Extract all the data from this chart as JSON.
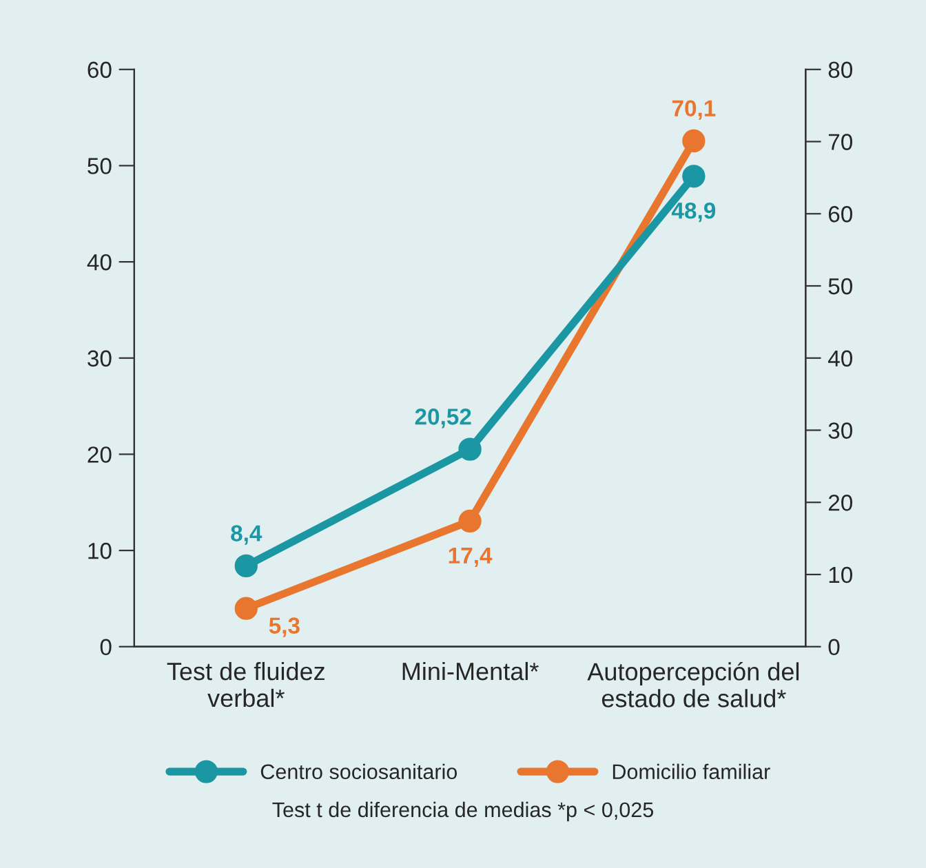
{
  "chart_data": {
    "type": "line",
    "categories": [
      "Test de fluidez\nverbal*",
      "Mini-Mental*",
      "Autopercepción del\nestado de salud*"
    ],
    "series": [
      {
        "name": "Centro sociosanitario",
        "color": "#1b97a3",
        "values": [
          8.4,
          20.52,
          48.9
        ],
        "value_labels": [
          "8,4",
          "20,52",
          "48,9"
        ]
      },
      {
        "name": "Domicilio familiar",
        "color": "#e8762f",
        "values": [
          5.3,
          17.4,
          70.1
        ],
        "axis": "y2",
        "value_labels": [
          "5,3",
          "17,4",
          "70,1"
        ]
      }
    ],
    "ylim": [
      0,
      60
    ],
    "yticks": [
      0,
      10,
      20,
      30,
      40,
      50,
      60
    ],
    "y2lim": [
      0,
      80
    ],
    "y2ticks": [
      0,
      10,
      20,
      30,
      40,
      50,
      60,
      70,
      80
    ],
    "marker": "circle",
    "line_style": "solid",
    "grid": false,
    "legend": "bottom",
    "annotations": [
      "Test t de diferencia de medias *p < 0,025"
    ]
  }
}
